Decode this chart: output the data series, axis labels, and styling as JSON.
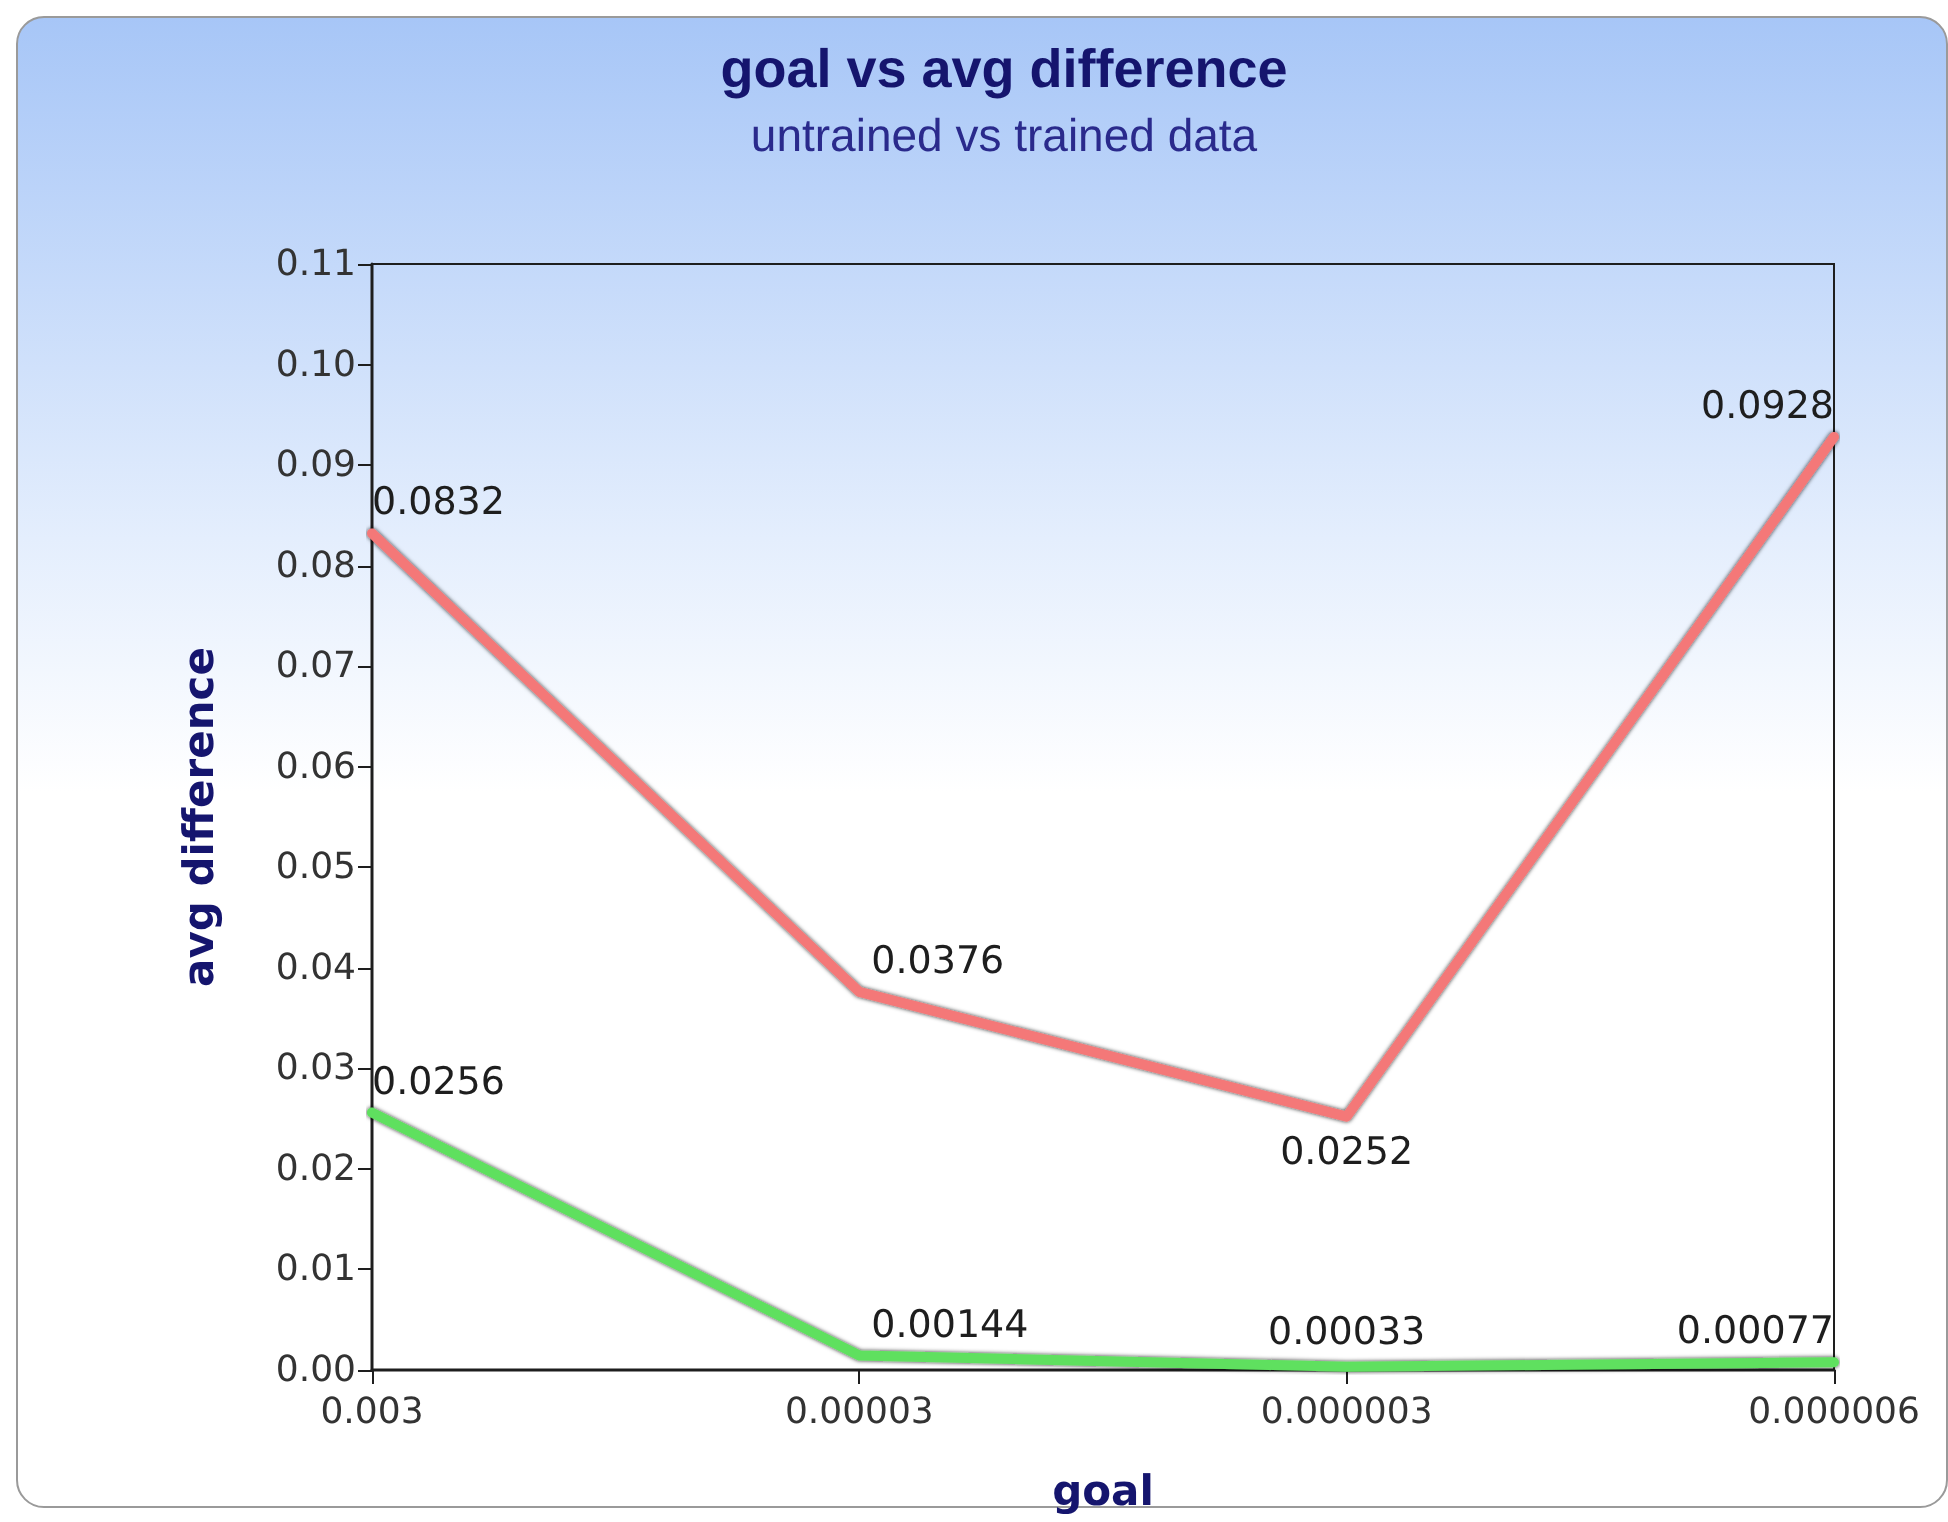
{
  "chart_data": {
    "type": "line",
    "title": "goal vs avg difference",
    "subtitle": "untrained vs trained data",
    "xlabel": "goal",
    "ylabel": "avg difference",
    "categories": [
      "0.003",
      "0.00003",
      "0.000003",
      "0.000006"
    ],
    "series": [
      {
        "color": "#f47878",
        "values": [
          0.0832,
          0.0376,
          0.0252,
          0.0928
        ]
      },
      {
        "color": "#5fe05f",
        "values": [
          0.0256,
          0.00144,
          0.00033,
          0.00077
        ]
      }
    ],
    "ylim": [
      0,
      0.11
    ],
    "yticks": [
      {
        "value": 0,
        "label": "0.00"
      },
      0.01,
      0.02,
      0.03,
      0.04,
      0.05,
      0.06,
      0.07,
      0.08,
      0.09,
      {
        "value": 0.1,
        "label": "0.10"
      },
      0.11
    ],
    "data_labels": true,
    "grid": false,
    "marker": "none",
    "line_style": "solid"
  }
}
